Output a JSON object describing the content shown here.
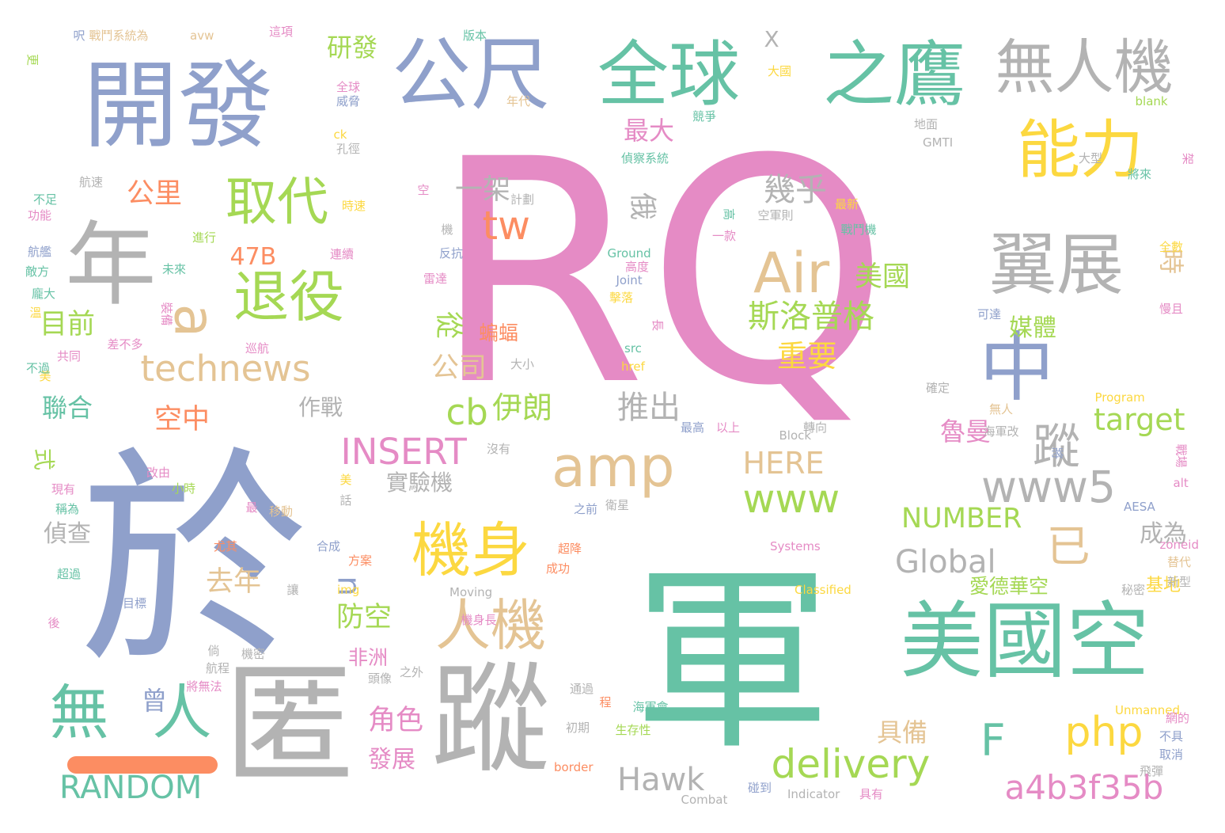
{
  "palette": {
    "pink": "#e58bc5",
    "green": "#66c2a5",
    "blue": "#8fa0cb",
    "gray": "#b3b3b3",
    "tan": "#e4c494",
    "yellow": "#fcd840",
    "lime": "#a5d854",
    "orange": "#fc8d62"
  },
  "words": [
    {
      "text": "RQ",
      "color": "pink"
    },
    {
      "text": "軍",
      "color": "green"
    },
    {
      "text": "於",
      "color": "blue"
    },
    {
      "text": "匿",
      "color": "gray"
    },
    {
      "text": "蹤",
      "color": "gray"
    },
    {
      "text": "開發",
      "color": "blue"
    },
    {
      "text": "年",
      "color": "gray"
    },
    {
      "text": "公尺",
      "color": "blue"
    },
    {
      "text": "全球",
      "color": "green"
    },
    {
      "text": "之鷹",
      "color": "green"
    },
    {
      "text": "無人機",
      "color": "gray"
    },
    {
      "text": "能力",
      "color": "yellow"
    },
    {
      "text": "翼展",
      "color": "gray"
    },
    {
      "text": "中",
      "color": "blue"
    },
    {
      "text": "美國空",
      "color": "green"
    },
    {
      "text": "Air",
      "color": "tan"
    },
    {
      "text": "amp",
      "color": "tan"
    },
    {
      "text": "機身",
      "color": "yellow"
    },
    {
      "text": "人機",
      "color": "tan"
    },
    {
      "text": "無",
      "color": "green"
    },
    {
      "text": "人",
      "color": "green"
    },
    {
      "text": "退役",
      "color": "lime"
    },
    {
      "text": "取代",
      "color": "lime"
    },
    {
      "text": "a",
      "color": "tan"
    },
    {
      "text": "technews",
      "color": "tan"
    },
    {
      "text": "www5",
      "color": "gray"
    },
    {
      "text": "已",
      "color": "tan"
    },
    {
      "text": "蹤",
      "color": "gray"
    },
    {
      "text": "F",
      "color": "green"
    },
    {
      "text": "delivery",
      "color": "lime"
    },
    {
      "text": "www",
      "color": "lime"
    },
    {
      "text": "php",
      "color": "yellow"
    },
    {
      "text": "a4b3f35b",
      "color": "pink"
    },
    {
      "text": "INSERT",
      "color": "pink"
    },
    {
      "text": "RANDOM",
      "color": "green"
    },
    {
      "text": "Hawk",
      "color": "gray"
    },
    {
      "text": "Global",
      "color": "gray"
    },
    {
      "text": "NUMBER",
      "color": "lime"
    },
    {
      "text": "HERE",
      "color": "tan"
    },
    {
      "text": "target",
      "color": "lime"
    },
    {
      "text": "tw",
      "color": "orange"
    },
    {
      "text": "cb",
      "color": "lime"
    },
    {
      "text": "n",
      "color": "blue"
    },
    {
      "text": "斯洛普格",
      "color": "lime"
    },
    {
      "text": "重要",
      "color": "yellow"
    },
    {
      "text": "美國",
      "color": "lime"
    },
    {
      "text": "幾乎",
      "color": "gray"
    },
    {
      "text": "伊朗",
      "color": "lime"
    },
    {
      "text": "推出",
      "color": "gray"
    },
    {
      "text": "一架",
      "color": "gray"
    },
    {
      "text": "公司",
      "color": "tan"
    },
    {
      "text": "俄",
      "color": "gray"
    },
    {
      "text": "從",
      "color": "lime"
    },
    {
      "text": "媒體",
      "color": "lime"
    },
    {
      "text": "魯曼",
      "color": "pink"
    },
    {
      "text": "時",
      "color": "tan"
    },
    {
      "text": "防空",
      "color": "lime"
    },
    {
      "text": "去年",
      "color": "tan"
    },
    {
      "text": "角色",
      "color": "pink"
    },
    {
      "text": "發展",
      "color": "pink"
    },
    {
      "text": "具備",
      "color": "tan"
    },
    {
      "text": "成為",
      "color": "gray"
    },
    {
      "text": "研發",
      "color": "lime"
    },
    {
      "text": "最大",
      "color": "pink"
    },
    {
      "text": "公里",
      "color": "orange"
    },
    {
      "text": "47B",
      "color": "orange"
    },
    {
      "text": "目前",
      "color": "lime"
    },
    {
      "text": "聯合",
      "color": "green"
    },
    {
      "text": "空中",
      "color": "orange"
    },
    {
      "text": "作戰",
      "color": "gray"
    },
    {
      "text": "偵查",
      "color": "gray"
    },
    {
      "text": "實驗機",
      "color": "gray"
    },
    {
      "text": "愛德華空",
      "color": "lime"
    },
    {
      "text": "非洲",
      "color": "pink"
    },
    {
      "text": "曾",
      "color": "blue"
    },
    {
      "text": "式",
      "color": "lime"
    },
    {
      "text": "X",
      "color": "gray"
    },
    {
      "text": "蝙蝠",
      "color": "orange"
    },
    {
      "text": "基地",
      "color": "yellow"
    },
    {
      "text": "版本",
      "color": "green"
    },
    {
      "text": "這項",
      "color": "pink"
    },
    {
      "text": "戰鬥系統為",
      "color": "tan"
    },
    {
      "text": "avw",
      "color": "tan"
    },
    {
      "text": "呎",
      "color": "blue"
    },
    {
      "text": "更",
      "color": "lime"
    },
    {
      "text": "全球",
      "color": "pink"
    },
    {
      "text": "威脅",
      "color": "blue"
    },
    {
      "text": "年代",
      "color": "tan"
    },
    {
      "text": "ck",
      "color": "yellow"
    },
    {
      "text": "孔徑",
      "color": "gray"
    },
    {
      "text": "航速",
      "color": "gray"
    },
    {
      "text": "計劃",
      "color": "gray"
    },
    {
      "text": "偵察系統",
      "color": "green"
    },
    {
      "text": "競爭",
      "color": "green"
    },
    {
      "text": "大國",
      "color": "yellow"
    },
    {
      "text": "blank",
      "color": "lime"
    },
    {
      "text": "GMTI",
      "color": "gray"
    },
    {
      "text": "地面",
      "color": "gray"
    },
    {
      "text": "大型",
      "color": "gray"
    },
    {
      "text": "將來",
      "color": "green"
    },
    {
      "text": "架",
      "color": "pink"
    },
    {
      "text": "最新",
      "color": "yellow"
    },
    {
      "text": "戰鬥機",
      "color": "green"
    },
    {
      "text": "空軍則",
      "color": "gray"
    },
    {
      "text": "高",
      "color": "green"
    },
    {
      "text": "一款",
      "color": "pink"
    },
    {
      "text": "Ground",
      "color": "green"
    },
    {
      "text": "高度",
      "color": "pink"
    },
    {
      "text": "Joint",
      "color": "blue"
    },
    {
      "text": "擊落",
      "color": "yellow"
    },
    {
      "text": "長",
      "color": "pink"
    },
    {
      "text": "src",
      "color": "green"
    },
    {
      "text": "href",
      "color": "yellow"
    },
    {
      "text": "大小",
      "color": "gray"
    },
    {
      "text": "Block",
      "color": "gray"
    },
    {
      "text": "轉向",
      "color": "gray"
    },
    {
      "text": "最高",
      "color": "blue"
    },
    {
      "text": "以上",
      "color": "pink"
    },
    {
      "text": "確定",
      "color": "gray"
    },
    {
      "text": "無人",
      "color": "tan"
    },
    {
      "text": "海軍改",
      "color": "gray"
    },
    {
      "text": "Program",
      "color": "yellow"
    },
    {
      "text": "戰場",
      "color": "pink"
    },
    {
      "text": "將",
      "color": "blue"
    },
    {
      "text": "alt",
      "color": "pink"
    },
    {
      "text": "AESA",
      "color": "blue"
    },
    {
      "text": "zoneid",
      "color": "pink"
    },
    {
      "text": "Systems",
      "color": "pink"
    },
    {
      "text": "Classified",
      "color": "yellow"
    },
    {
      "text": "替代",
      "color": "tan"
    },
    {
      "text": "新型",
      "color": "gray"
    },
    {
      "text": "秘密",
      "color": "gray"
    },
    {
      "text": "衛星",
      "color": "gray"
    },
    {
      "text": "之前",
      "color": "blue"
    },
    {
      "text": "Moving",
      "color": "gray"
    },
    {
      "text": "機身長",
      "color": "pink"
    },
    {
      "text": "超降",
      "color": "orange"
    },
    {
      "text": "成功",
      "color": "orange"
    },
    {
      "text": "方案",
      "color": "orange"
    },
    {
      "text": "合成",
      "color": "blue"
    },
    {
      "text": "Unmanned",
      "color": "yellow"
    },
    {
      "text": "網的",
      "color": "pink"
    },
    {
      "text": "不具",
      "color": "blue"
    },
    {
      "text": "取消",
      "color": "blue"
    },
    {
      "text": "飛彈",
      "color": "gray"
    },
    {
      "text": "Indicator",
      "color": "gray"
    },
    {
      "text": "具有",
      "color": "pink"
    },
    {
      "text": "碰到",
      "color": "blue"
    },
    {
      "text": "Combat",
      "color": "gray"
    },
    {
      "text": "border",
      "color": "orange"
    },
    {
      "text": "生存性",
      "color": "lime"
    },
    {
      "text": "海軍會",
      "color": "green"
    },
    {
      "text": "程",
      "color": "orange"
    },
    {
      "text": "通過",
      "color": "gray"
    },
    {
      "text": "初期",
      "color": "gray"
    },
    {
      "text": "之外",
      "color": "gray"
    },
    {
      "text": "頭像",
      "color": "gray"
    },
    {
      "text": "機密",
      "color": "gray"
    },
    {
      "text": "倘",
      "color": "gray"
    },
    {
      "text": "航程",
      "color": "gray"
    },
    {
      "text": "將無法",
      "color": "pink"
    },
    {
      "text": "後",
      "color": "pink"
    },
    {
      "text": "目標",
      "color": "blue"
    },
    {
      "text": "尤其",
      "color": "orange"
    },
    {
      "text": "移動",
      "color": "tan"
    },
    {
      "text": "最",
      "color": "pink"
    },
    {
      "text": "超過",
      "color": "green"
    },
    {
      "text": "稱為",
      "color": "green"
    },
    {
      "text": "現有",
      "color": "pink"
    },
    {
      "text": "改由",
      "color": "pink"
    },
    {
      "text": "小時",
      "color": "lime"
    },
    {
      "text": "美",
      "color": "yellow"
    },
    {
      "text": "話",
      "color": "gray"
    },
    {
      "text": "讓",
      "color": "gray"
    },
    {
      "text": "img",
      "color": "yellow"
    },
    {
      "text": "美",
      "color": "yellow"
    },
    {
      "text": "共同",
      "color": "pink"
    },
    {
      "text": "巡航",
      "color": "pink"
    },
    {
      "text": "差不多",
      "color": "pink"
    },
    {
      "text": "不過",
      "color": "green"
    },
    {
      "text": "裝備",
      "color": "pink"
    },
    {
      "text": "溫",
      "color": "yellow"
    },
    {
      "text": "龐大",
      "color": "green"
    },
    {
      "text": "未來",
      "color": "green"
    },
    {
      "text": "航艦",
      "color": "blue"
    },
    {
      "text": "敵方",
      "color": "green"
    },
    {
      "text": "進行",
      "color": "lime"
    },
    {
      "text": "功能",
      "color": "pink"
    },
    {
      "text": "不足",
      "color": "green"
    },
    {
      "text": "時速",
      "color": "yellow"
    },
    {
      "text": "連續",
      "color": "pink"
    },
    {
      "text": "反抗",
      "color": "blue"
    },
    {
      "text": "雷達",
      "color": "pink"
    },
    {
      "text": "機",
      "color": "gray"
    },
    {
      "text": "空",
      "color": "pink"
    },
    {
      "text": "可達",
      "color": "blue"
    },
    {
      "text": "慢且",
      "color": "pink"
    },
    {
      "text": "全數",
      "color": "yellow"
    },
    {
      "text": "沒有",
      "color": "gray"
    }
  ]
}
